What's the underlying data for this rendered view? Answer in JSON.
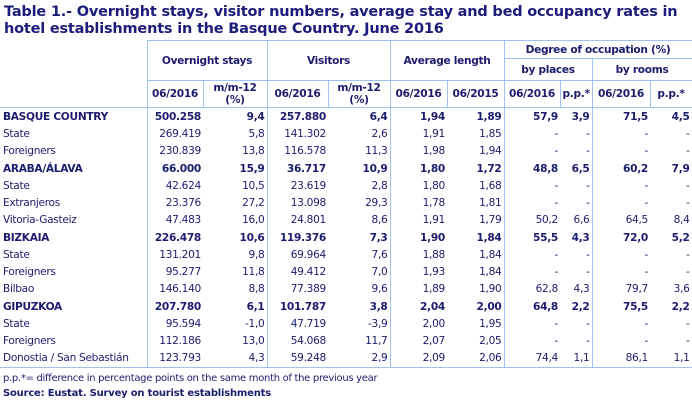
{
  "title": "Table 1.- Overnight stays, visitor numbers, average stay and bed occupancy rates in hotel establishments in the Basque Country. June 2016",
  "headers": {
    "overnight": "Overnight stays",
    "visitors": "Visitors",
    "avg": "Average length",
    "degree": "Degree of occupation (%)",
    "places": "by places",
    "rooms": "by rooms",
    "sub": [
      "06/2016",
      "m/m-12 (%)",
      "06/2016",
      "m/m-12 (%)",
      "06/2016",
      "06/2015",
      "06/2016",
      "p.p.*",
      "06/2016",
      "p.p.*"
    ]
  },
  "rows": [
    {
      "bold": true,
      "label": "BASQUE COUNTRY",
      "v": [
        "500.258",
        "9,4",
        "257.880",
        "6,4",
        "1,94",
        "1,89",
        "57,9",
        "3,9",
        "71,5",
        "4,5"
      ]
    },
    {
      "label": "State",
      "v": [
        "269.419",
        "5,8",
        "141.302",
        "2,6",
        "1,91",
        "1,85",
        "-",
        "-",
        "-",
        "-"
      ]
    },
    {
      "label": "Foreigners",
      "v": [
        "230.839",
        "13,8",
        "116.578",
        "11,3",
        "1,98",
        "1,94",
        "-",
        "-",
        "-",
        "-"
      ]
    },
    {
      "bold": true,
      "label": "ARABA/ÁLAVA",
      "v": [
        "66.000",
        "15,9",
        "36.717",
        "10,9",
        "1,80",
        "1,72",
        "48,8",
        "6,5",
        "60,2",
        "7,9"
      ]
    },
    {
      "label": "State",
      "v": [
        "42.624",
        "10,5",
        "23.619",
        "2,8",
        "1,80",
        "1,68",
        "-",
        "-",
        "-",
        "-"
      ]
    },
    {
      "label": "Extranjeros",
      "v": [
        "23.376",
        "27,2",
        "13.098",
        "29,3",
        "1,78",
        "1,81",
        "-",
        "-",
        "-",
        "-"
      ]
    },
    {
      "label": "Vitoria-Gasteiz",
      "v": [
        "47.483",
        "16,0",
        "24.801",
        "8,6",
        "1,91",
        "1,79",
        "50,2",
        "6,6",
        "64,5",
        "8,4"
      ]
    },
    {
      "bold": true,
      "label": "BIZKAIA",
      "v": [
        "226.478",
        "10,6",
        "119.376",
        "7,3",
        "1,90",
        "1,84",
        "55,5",
        "4,3",
        "72,0",
        "5,2"
      ]
    },
    {
      "label": "State",
      "v": [
        "131.201",
        "9,8",
        "69.964",
        "7,6",
        "1,88",
        "1,84",
        "-",
        "-",
        "-",
        "-"
      ]
    },
    {
      "label": "Foreigners",
      "v": [
        "95.277",
        "11,8",
        "49.412",
        "7,0",
        "1,93",
        "1,84",
        "-",
        "-",
        "-",
        "-"
      ]
    },
    {
      "label": "Bilbao",
      "v": [
        "146.140",
        "8,8",
        "77.389",
        "9,6",
        "1,89",
        "1,90",
        "62,8",
        "4,3",
        "79,7",
        "3,6"
      ]
    },
    {
      "bold": true,
      "label": "GIPUZKOA",
      "v": [
        "207.780",
        "6,1",
        "101.787",
        "3,8",
        "2,04",
        "2,00",
        "64,8",
        "2,2",
        "75,5",
        "2,2"
      ]
    },
    {
      "label": "State",
      "v": [
        "95.594",
        "-1,0",
        "47.719",
        "-3,9",
        "2,00",
        "1,95",
        "-",
        "-",
        "-",
        "-"
      ]
    },
    {
      "label": "Foreigners",
      "v": [
        "112.186",
        "13,0",
        "54.068",
        "11,7",
        "2,07",
        "2,05",
        "-",
        "-",
        "-",
        "-"
      ]
    },
    {
      "label": "Donostia / San Sebastián",
      "v": [
        "123.793",
        "4,3",
        "59.248",
        "2,9",
        "2,09",
        "2,06",
        "74,4",
        "1,1",
        "86,1",
        "1,1"
      ]
    }
  ],
  "footnote": "p.p.*= difference in percentage points on the same month of the previous year",
  "source": "Source: Eustat. Survey on tourist establishments"
}
